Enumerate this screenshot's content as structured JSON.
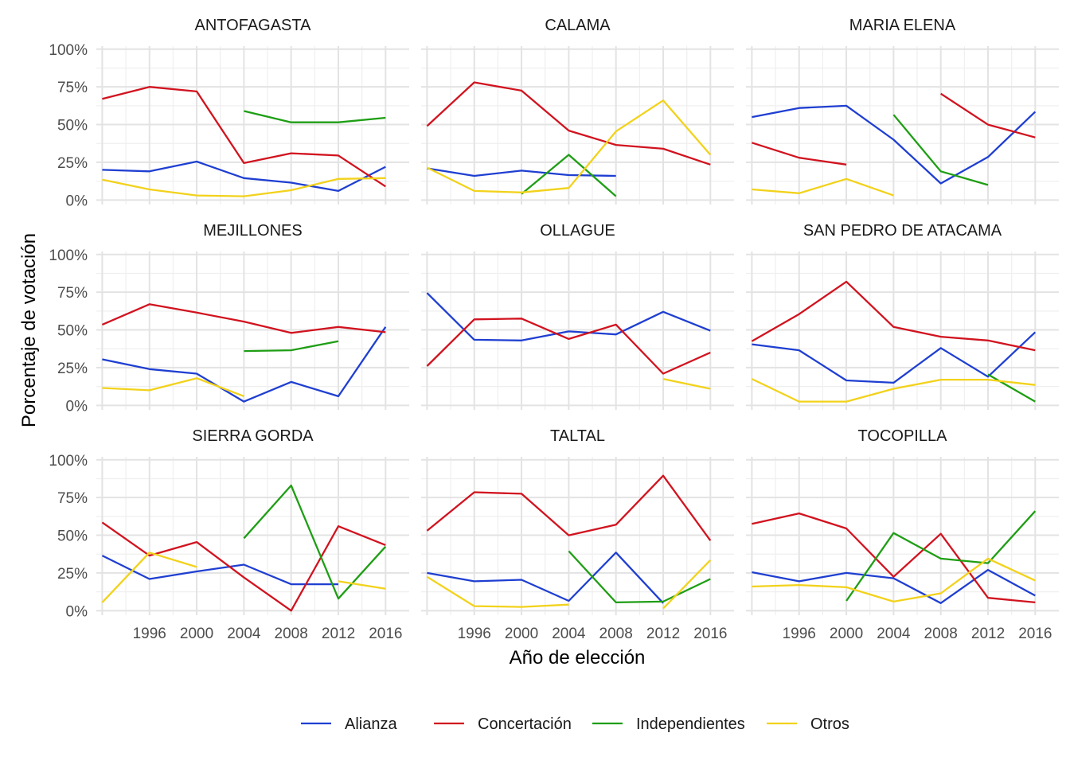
{
  "chart_data": {
    "type": "line",
    "xlabel": "Año de elección",
    "ylabel": "Porcentaje de votación",
    "x_ticks": [
      1996,
      2000,
      2004,
      2008,
      2012,
      2016
    ],
    "xlim": [
      1991.5,
      2018
    ],
    "ylim": [
      -3,
      102
    ],
    "y_ticks": [
      0,
      25,
      50,
      75,
      100
    ],
    "y_tick_labels": [
      "0%",
      "25%",
      "50%",
      "75%",
      "100%"
    ],
    "grid": true,
    "legend_position": "bottom",
    "series_colors": {
      "Alianza": "#1f3fd1",
      "Concertación": "#d1131f",
      "Independientes": "#1e9e14",
      "Otros": "#f2d21b"
    },
    "legend": [
      "Alianza",
      "Concertación",
      "Independientes",
      "Otros"
    ],
    "panels": [
      {
        "title": "ANTOFAGASTA",
        "series": [
          {
            "name": "Alianza",
            "x": [
              1992,
              1996,
              2000,
              2004,
              2008,
              2012,
              2016
            ],
            "y": [
              20,
              19,
              25.5,
              14.5,
              11.5,
              6,
              22
            ]
          },
          {
            "name": "Concertación",
            "x": [
              1992,
              1996,
              2000,
              2004,
              2008,
              2012,
              2016
            ],
            "y": [
              67,
              75,
              72,
              24.5,
              31,
              29.5,
              9
            ]
          },
          {
            "name": "Independientes",
            "x": [
              2004,
              2008,
              2012,
              2016
            ],
            "y": [
              59,
              51.5,
              51.5,
              54.5
            ]
          },
          {
            "name": "Otros",
            "x": [
              1992,
              1996,
              2000,
              2004,
              2008,
              2012,
              2016
            ],
            "y": [
              13.5,
              7,
              3,
              2.5,
              6.5,
              14,
              14.5
            ]
          }
        ]
      },
      {
        "title": "CALAMA",
        "series": [
          {
            "name": "Alianza",
            "x": [
              1992,
              1996,
              2000,
              2004,
              2008
            ],
            "y": [
              21,
              16,
              19.5,
              16.5,
              16
            ]
          },
          {
            "name": "Concertación",
            "x": [
              1992,
              1996,
              2000,
              2004,
              2008,
              2012,
              2016
            ],
            "y": [
              49,
              78,
              72.5,
              46,
              36.5,
              34,
              23.5
            ]
          },
          {
            "name": "Independientes",
            "x": [
              2000,
              2004,
              2008
            ],
            "y": [
              4,
              30,
              2.5
            ]
          },
          {
            "name": "Otros",
            "x": [
              1992,
              1996,
              2000,
              2004,
              2008,
              2012,
              2016
            ],
            "y": [
              21.5,
              6,
              5,
              8,
              45.5,
              66,
              30
            ]
          }
        ]
      },
      {
        "title": "MARIA ELENA",
        "series": [
          {
            "name": "Alianza",
            "x": [
              1992,
              1996,
              2000,
              2004,
              2008,
              2012,
              2016
            ],
            "y": [
              55,
              61,
              62.5,
              40,
              11,
              28.5,
              58.5
            ]
          },
          {
            "name": "Concertación",
            "x": [
              1992,
              1996,
              2000
            ],
            "y": [
              38,
              28,
              23.5
            ]
          },
          {
            "name": "Concertación",
            "x": [
              2008,
              2012,
              2016
            ],
            "y": [
              70.5,
              50,
              41.5
            ]
          },
          {
            "name": "Independientes",
            "x": [
              2004,
              2008,
              2012
            ],
            "y": [
              56.5,
              19,
              10
            ]
          },
          {
            "name": "Otros",
            "x": [
              1992,
              1996,
              2000,
              2004
            ],
            "y": [
              7,
              4.5,
              14,
              3
            ]
          }
        ]
      },
      {
        "title": "MEJILLONES",
        "series": [
          {
            "name": "Alianza",
            "x": [
              1992,
              1996,
              2000,
              2004,
              2008,
              2012,
              2016
            ],
            "y": [
              30.5,
              24,
              21,
              2.5,
              15.5,
              6,
              52
            ]
          },
          {
            "name": "Concertación",
            "x": [
              1992,
              1996,
              2000,
              2004,
              2008,
              2012,
              2016
            ],
            "y": [
              53.5,
              67,
              61.5,
              55.5,
              48,
              52,
              48.5
            ]
          },
          {
            "name": "Independientes",
            "x": [
              2004,
              2008,
              2012
            ],
            "y": [
              36,
              36.5,
              42.5
            ]
          },
          {
            "name": "Otros",
            "x": [
              1992,
              1996,
              2000,
              2004
            ],
            "y": [
              11.5,
              10,
              18,
              6
            ]
          }
        ]
      },
      {
        "title": "OLLAGUE",
        "series": [
          {
            "name": "Alianza",
            "x": [
              1992,
              1996,
              2000,
              2004,
              2008,
              2012,
              2016
            ],
            "y": [
              74.5,
              43.5,
              43,
              49,
              47,
              62,
              49.5
            ]
          },
          {
            "name": "Concertación",
            "x": [
              1992,
              1996,
              2000,
              2004,
              2008,
              2012,
              2016
            ],
            "y": [
              26,
              57,
              57.5,
              44,
              53.5,
              21,
              35
            ]
          },
          {
            "name": "Otros",
            "x": [
              2012,
              2016
            ],
            "y": [
              17.5,
              11
            ]
          }
        ]
      },
      {
        "title": "SAN PEDRO DE ATACAMA",
        "series": [
          {
            "name": "Alianza",
            "x": [
              1992,
              1996,
              2000,
              2004,
              2008,
              2012,
              2016
            ],
            "y": [
              40.5,
              36.5,
              16.5,
              15,
              38,
              19,
              48.5
            ]
          },
          {
            "name": "Concertación",
            "x": [
              1992,
              1996,
              2000,
              2004,
              2008,
              2012,
              2016
            ],
            "y": [
              42.5,
              60.5,
              82,
              52,
              45.5,
              43,
              36.5
            ]
          },
          {
            "name": "Independientes",
            "x": [
              2012,
              2016
            ],
            "y": [
              20.5,
              2.5
            ]
          },
          {
            "name": "Otros",
            "x": [
              1992,
              1996,
              2000,
              2004,
              2008,
              2012,
              2016
            ],
            "y": [
              17.5,
              2.5,
              2.5,
              11,
              17,
              17,
              13.5
            ]
          }
        ]
      },
      {
        "title": "SIERRA GORDA",
        "series": [
          {
            "name": "Alianza",
            "x": [
              1992,
              1996,
              2000,
              2004,
              2008,
              2012
            ],
            "y": [
              36.5,
              21,
              26,
              30.5,
              17.5,
              17.5
            ]
          },
          {
            "name": "Concertación",
            "x": [
              1992,
              1996,
              2000,
              2004,
              2008,
              2012,
              2016
            ],
            "y": [
              58.5,
              36.5,
              45.5,
              22,
              0,
              56,
              43.5
            ]
          },
          {
            "name": "Independientes",
            "x": [
              2004,
              2008,
              2012,
              2016
            ],
            "y": [
              48,
              83,
              8,
              42.5
            ]
          },
          {
            "name": "Otros",
            "x": [
              1992,
              1996,
              2000
            ],
            "y": [
              5.5,
              38.5,
              29
            ]
          },
          {
            "name": "Otros",
            "x": [
              2012,
              2016
            ],
            "y": [
              19.5,
              14.5
            ]
          }
        ]
      },
      {
        "title": "TALTAL",
        "series": [
          {
            "name": "Alianza",
            "x": [
              1992,
              1996,
              2000,
              2004,
              2008,
              2012
            ],
            "y": [
              25,
              19.5,
              20.5,
              6.5,
              38.5,
              5
            ]
          },
          {
            "name": "Concertación",
            "x": [
              1992,
              1996,
              2000,
              2004,
              2008,
              2012,
              2016
            ],
            "y": [
              53,
              78.5,
              77.5,
              50,
              57,
              89.5,
              46.5
            ]
          },
          {
            "name": "Independientes",
            "x": [
              2004,
              2008,
              2012,
              2016
            ],
            "y": [
              39.5,
              5.5,
              6,
              21
            ]
          },
          {
            "name": "Otros",
            "x": [
              1992,
              1996,
              2000,
              2004
            ],
            "y": [
              22.5,
              3,
              2.5,
              4
            ]
          },
          {
            "name": "Otros",
            "x": [
              2012,
              2016
            ],
            "y": [
              1.5,
              33.5
            ]
          }
        ]
      },
      {
        "title": "TOCOPILLA",
        "series": [
          {
            "name": "Alianza",
            "x": [
              1992,
              1996,
              2000,
              2004,
              2008,
              2012,
              2016
            ],
            "y": [
              25.5,
              19.5,
              25,
              21.5,
              5,
              27,
              10
            ]
          },
          {
            "name": "Concertación",
            "x": [
              1992,
              1996,
              2000,
              2004,
              2008,
              2012,
              2016
            ],
            "y": [
              57.5,
              64.5,
              54.5,
              22.5,
              51,
              8.5,
              5.5
            ]
          },
          {
            "name": "Independientes",
            "x": [
              2000,
              2004,
              2008,
              2012,
              2016
            ],
            "y": [
              6.5,
              51.5,
              34.5,
              31.5,
              66
            ]
          },
          {
            "name": "Otros",
            "x": [
              1992,
              1996,
              2000,
              2004,
              2008,
              2012,
              2016
            ],
            "y": [
              16,
              17,
              15.5,
              6,
              11.5,
              34.5,
              20
            ]
          }
        ]
      }
    ]
  }
}
